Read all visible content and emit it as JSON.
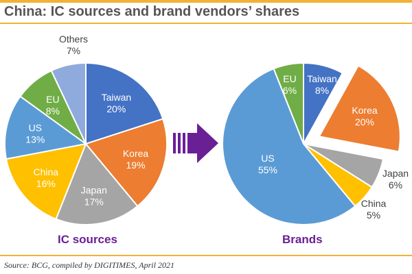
{
  "title": "China: IC sources and brand vendors’ shares",
  "source": "Source: BCG, compiled by DIGITIMES, April 2021",
  "chart_data": [
    {
      "type": "pie",
      "caption": "IC sources",
      "slices": [
        {
          "label": "Taiwan",
          "value": 20,
          "display": "20%",
          "color": "#4472c4",
          "text_color": "#ffffff"
        },
        {
          "label": "Korea",
          "value": 19,
          "display": "19%",
          "color": "#ed7d31",
          "text_color": "#ffffff"
        },
        {
          "label": "Japan",
          "value": 17,
          "display": "17%",
          "color": "#a5a5a5",
          "text_color": "#ffffff"
        },
        {
          "label": "China",
          "value": 16,
          "display": "16%",
          "color": "#ffc000",
          "text_color": "#ffffff"
        },
        {
          "label": "US",
          "value": 13,
          "display": "13%",
          "color": "#5b9bd5",
          "text_color": "#ffffff"
        },
        {
          "label": "EU",
          "value": 8,
          "display": "8%",
          "color": "#70ad47",
          "text_color": "#ffffff"
        },
        {
          "label": "Others",
          "value": 7,
          "display": "7%",
          "color": "#8faadc",
          "text_color": "#404040"
        }
      ]
    },
    {
      "type": "pie",
      "caption": "Brands",
      "exploded": "Korea",
      "slices": [
        {
          "label": "Taiwan",
          "value": 8,
          "display": "8%",
          "color": "#4472c4",
          "text_color": "#ffffff"
        },
        {
          "label": "Korea",
          "value": 20,
          "display": "20%",
          "color": "#ed7d31",
          "text_color": "#ffffff"
        },
        {
          "label": "Japan",
          "value": 6,
          "display": "6%",
          "color": "#a5a5a5",
          "text_color": "#404040"
        },
        {
          "label": "China",
          "value": 5,
          "display": "5%",
          "color": "#ffc000",
          "text_color": "#404040"
        },
        {
          "label": "US",
          "value": 55,
          "display": "55%",
          "color": "#5b9bd5",
          "text_color": "#ffffff"
        },
        {
          "label": "EU",
          "value": 6,
          "display": "6%",
          "color": "#70ad47",
          "text_color": "#ffffff"
        }
      ]
    }
  ],
  "arrow_color": "#6a1f95"
}
